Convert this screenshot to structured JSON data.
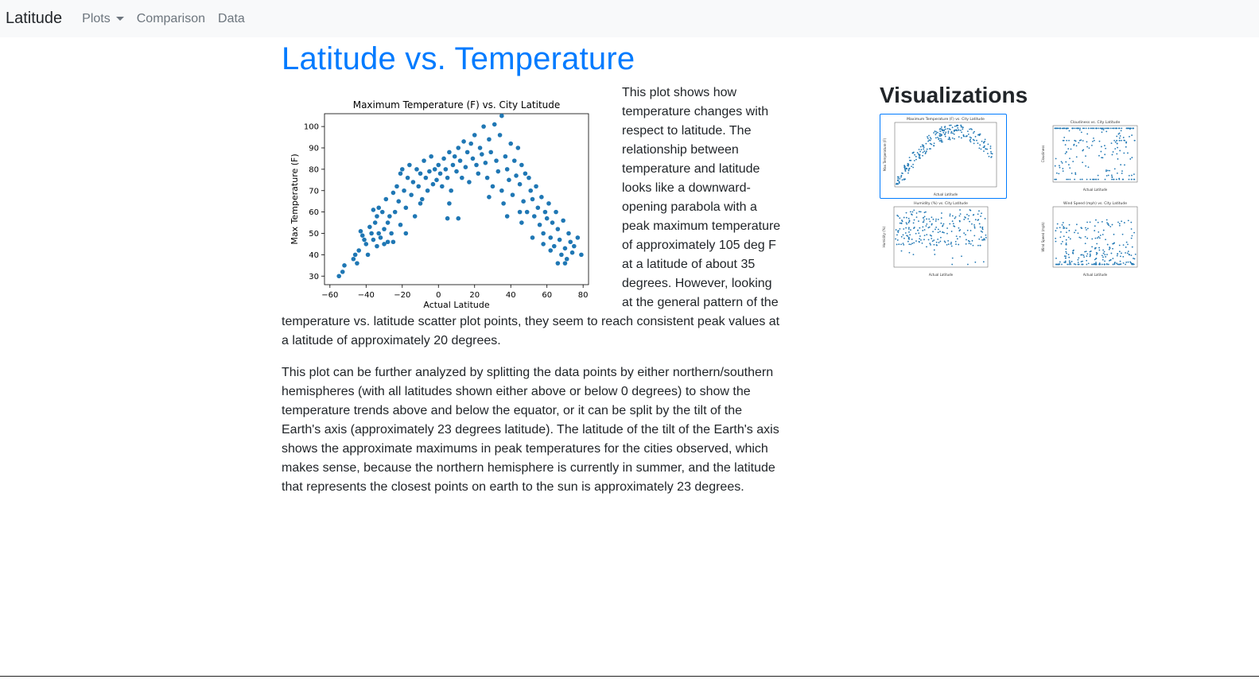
{
  "navbar": {
    "brand": "Latitude",
    "items": [
      "Plots",
      "Comparison",
      "Data"
    ]
  },
  "main": {
    "title": "Latitude vs. Temperature",
    "paragraph1": "This plot shows how temperature changes with respect to latitude. The relationship between temperature and latitude looks like a downward-opening parabola with a peak maximum temperature of approximately 105 deg F at a latitude of about 35 degrees. However, looking at the general pattern of the temperature vs. latitude scatter plot points, they seem to reach consistent peak values at a latitude of approximately 20 degrees.",
    "paragraph2": "This plot can be further analyzed by splitting the data points by either northern/southern hemispheres (with all latitudes shown either above or below 0 degrees) to show the temperature trends above and below the equator, or it can be split by the tilt of the Earth's axis (approximately 23 degrees latitude). The latitude of the tilt of the Earth's axis shows the approximate maximums in peak temperatures for the cities observed, which makes sense, because the northern hemisphere is currently in summer, and the latitude that represents the closest points on earth to the sun is approximately 23 degrees."
  },
  "sidebar": {
    "heading": "Visualizations",
    "thumbnails": [
      {
        "title": "Maximum Temperature (F) vs. City Latitude",
        "ylabel": "Max Temperature (F)",
        "xlabel": "Actual Latitude",
        "active": true
      },
      {
        "title": "Cloudiness vs. City Latitude",
        "ylabel": "Cloudiness",
        "xlabel": "Actual Latitude",
        "active": false
      },
      {
        "title": "Humidity (%) vs. City Latitude",
        "ylabel": "Humidity (%)",
        "xlabel": "Actual Latitude",
        "active": false
      },
      {
        "title": "Wind Speed (mph) vs. City Latitude",
        "ylabel": "Wind Speed (mph)",
        "xlabel": "Actual Latitude",
        "active": false
      }
    ]
  },
  "colors": {
    "accent": "#007bff",
    "point": "#1f77b4",
    "navbar_bg": "#f8f9fa"
  },
  "chart_data": {
    "type": "scatter",
    "title": "Maximum Temperature (F) vs. City Latitude",
    "xlabel": "Actual Latitude",
    "ylabel": "Max Temperature (F)",
    "xlim": [
      -63,
      83
    ],
    "ylim": [
      26,
      106
    ],
    "xticks": [
      -60,
      -40,
      -20,
      0,
      20,
      40,
      60,
      80
    ],
    "yticks": [
      30,
      40,
      50,
      60,
      70,
      80,
      90,
      100
    ],
    "grid": false,
    "points": [
      [
        -55,
        30
      ],
      [
        -53,
        32
      ],
      [
        -52,
        35
      ],
      [
        -47,
        38
      ],
      [
        -46,
        40
      ],
      [
        -45,
        36
      ],
      [
        -43,
        51
      ],
      [
        -42,
        49
      ],
      [
        -41,
        47
      ],
      [
        -40,
        45
      ],
      [
        -38,
        53
      ],
      [
        -37,
        50
      ],
      [
        -36,
        47
      ],
      [
        -35,
        55
      ],
      [
        -34,
        58
      ],
      [
        -34,
        44
      ],
      [
        -33,
        62
      ],
      [
        -33,
        50
      ],
      [
        -32,
        48
      ],
      [
        -31,
        60
      ],
      [
        -30,
        52
      ],
      [
        -30,
        45
      ],
      [
        -29,
        66
      ],
      [
        -28,
        55
      ],
      [
        -27,
        58
      ],
      [
        -26,
        50
      ],
      [
        -25,
        69
      ],
      [
        -25,
        46
      ],
      [
        -24,
        60
      ],
      [
        -23,
        72
      ],
      [
        -22,
        65
      ],
      [
        -21,
        78
      ],
      [
        -21,
        54
      ],
      [
        -20,
        80
      ],
      [
        -19,
        70
      ],
      [
        -18,
        62
      ],
      [
        -17,
        76
      ],
      [
        -16,
        82
      ],
      [
        -15,
        68
      ],
      [
        -14,
        74
      ],
      [
        -13,
        58
      ],
      [
        -12,
        80
      ],
      [
        -11,
        72
      ],
      [
        -10,
        78
      ],
      [
        -9,
        66
      ],
      [
        -8,
        84
      ],
      [
        -7,
        76
      ],
      [
        -6,
        70
      ],
      [
        -5,
        79
      ],
      [
        -4,
        86
      ],
      [
        -3,
        73
      ],
      [
        -2,
        80
      ],
      [
        -1,
        75
      ],
      [
        0,
        82
      ],
      [
        1,
        78
      ],
      [
        2,
        72
      ],
      [
        3,
        85
      ],
      [
        4,
        80
      ],
      [
        5,
        76
      ],
      [
        6,
        88
      ],
      [
        6,
        64
      ],
      [
        7,
        70
      ],
      [
        8,
        82
      ],
      [
        9,
        86
      ],
      [
        10,
        79
      ],
      [
        11,
        57
      ],
      [
        11,
        90
      ],
      [
        12,
        84
      ],
      [
        13,
        76
      ],
      [
        14,
        93
      ],
      [
        15,
        81
      ],
      [
        16,
        88
      ],
      [
        17,
        74
      ],
      [
        18,
        92
      ],
      [
        19,
        85
      ],
      [
        20,
        96
      ],
      [
        21,
        82
      ],
      [
        22,
        78
      ],
      [
        23,
        90
      ],
      [
        24,
        87
      ],
      [
        25,
        100
      ],
      [
        26,
        83
      ],
      [
        27,
        76
      ],
      [
        28,
        94
      ],
      [
        29,
        88
      ],
      [
        30,
        72
      ],
      [
        31,
        101
      ],
      [
        32,
        84
      ],
      [
        33,
        79
      ],
      [
        34,
        96
      ],
      [
        35,
        105
      ],
      [
        35,
        70
      ],
      [
        36,
        64
      ],
      [
        37,
        86
      ],
      [
        38,
        58
      ],
      [
        38,
        80
      ],
      [
        39,
        75
      ],
      [
        40,
        92
      ],
      [
        41,
        68
      ],
      [
        42,
        84
      ],
      [
        43,
        77
      ],
      [
        44,
        90
      ],
      [
        45,
        73
      ],
      [
        46,
        82
      ],
      [
        47,
        65
      ],
      [
        48,
        78
      ],
      [
        49,
        60
      ],
      [
        50,
        76
      ],
      [
        51,
        70
      ],
      [
        52,
        66
      ],
      [
        53,
        58
      ],
      [
        54,
        72
      ],
      [
        55,
        62
      ],
      [
        56,
        54
      ],
      [
        57,
        67
      ],
      [
        58,
        50
      ],
      [
        59,
        60
      ],
      [
        60,
        57
      ],
      [
        61,
        64
      ],
      [
        62,
        48
      ],
      [
        63,
        55
      ],
      [
        64,
        44
      ],
      [
        65,
        60
      ],
      [
        66,
        52
      ],
      [
        67,
        47
      ],
      [
        68,
        40
      ],
      [
        69,
        56
      ],
      [
        70,
        43
      ],
      [
        71,
        38
      ],
      [
        72,
        50
      ],
      [
        73,
        46
      ],
      [
        74,
        41
      ],
      [
        75,
        44
      ],
      [
        77,
        48
      ],
      [
        79,
        40
      ],
      [
        -44,
        42
      ],
      [
        -39,
        40
      ],
      [
        -28,
        46
      ],
      [
        -10,
        64
      ],
      [
        5,
        57
      ],
      [
        46,
        55
      ],
      [
        52,
        48
      ],
      [
        66,
        36
      ],
      [
        70,
        36
      ],
      [
        58,
        45
      ],
      [
        62,
        42
      ],
      [
        -36,
        61
      ],
      [
        -18,
        50
      ],
      [
        28,
        67
      ],
      [
        45,
        60
      ]
    ]
  }
}
